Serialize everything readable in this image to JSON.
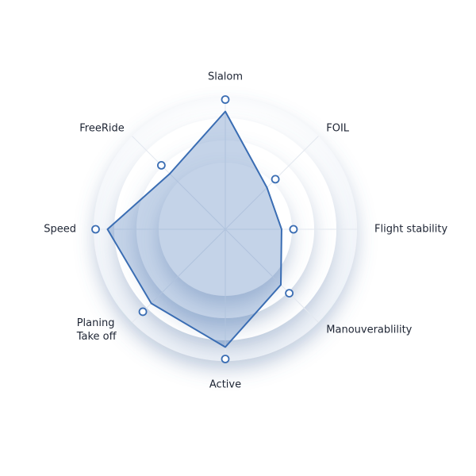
{
  "chart_data": {
    "type": "radar",
    "categories": [
      "Slalom",
      "FOIL",
      "Flight stability",
      "Manouverablility",
      "Active",
      "Planing Take off",
      "Speed",
      "FreeRide"
    ],
    "values": [
      9,
      4.5,
      4.3,
      6,
      9,
      8,
      9,
      6
    ],
    "ylim": [
      0,
      10
    ],
    "color": "#3a6db3"
  }
}
